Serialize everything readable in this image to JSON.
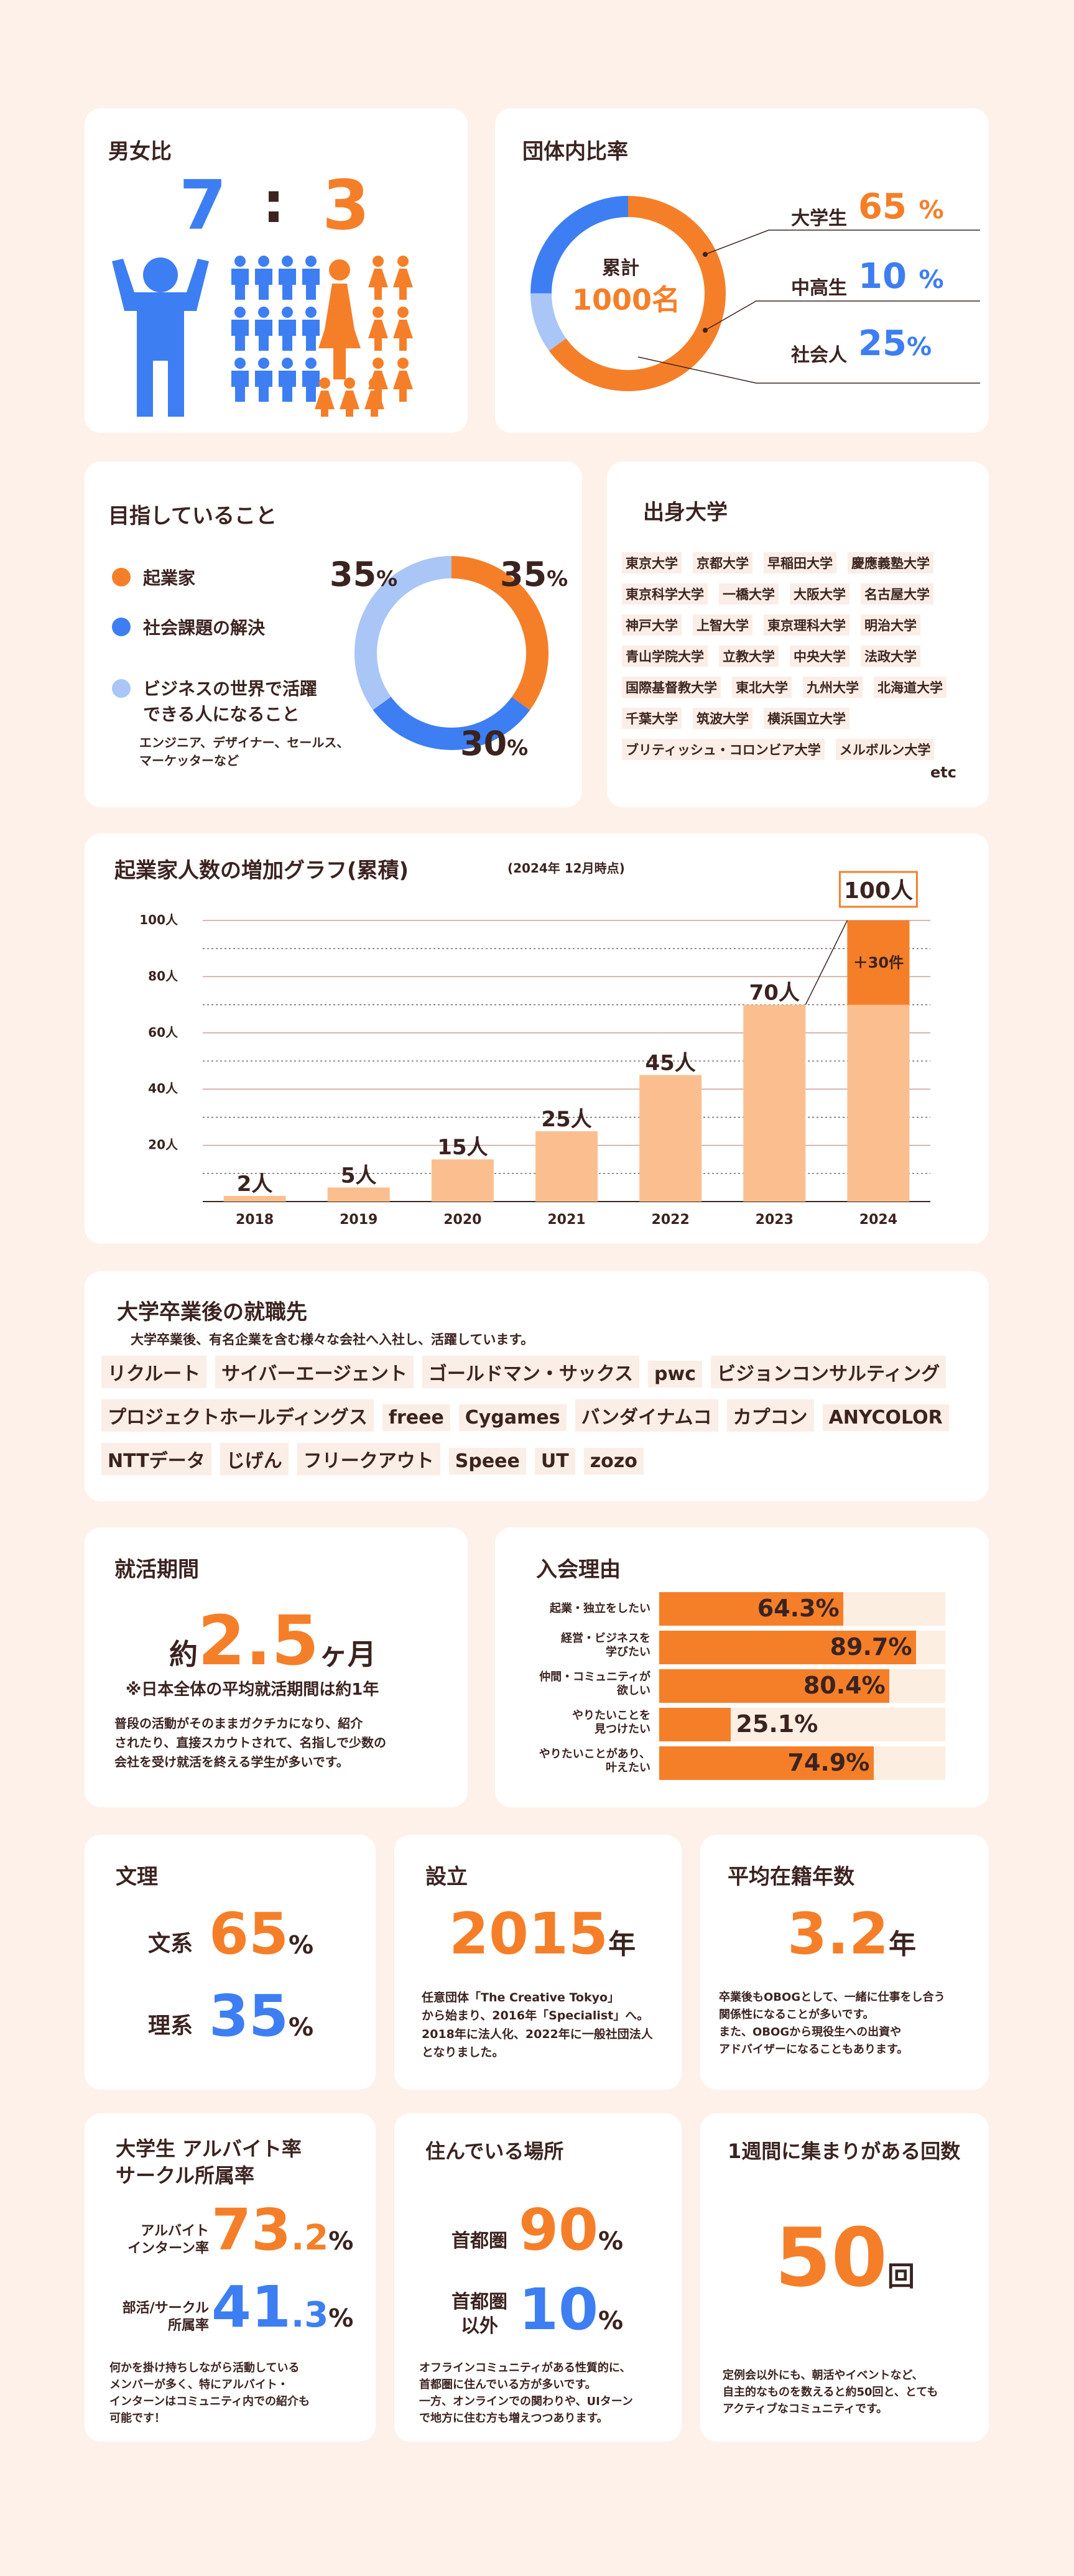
{
  "gender": {
    "title": "男女比",
    "male_ratio": "7",
    "colon": ":",
    "female_ratio": "3",
    "colors": {
      "male": "#3d7ef2",
      "female": "#f57f29"
    }
  },
  "composition": {
    "title": "団体内比率",
    "center_label": "累計",
    "center_value": "1000名",
    "items": [
      {
        "label": "大学生",
        "value": "65",
        "unit": "%",
        "color": "#f57f29"
      },
      {
        "label": "中高生",
        "value": "10",
        "unit": "%",
        "color": "#3d7ef2"
      },
      {
        "label": "社会人",
        "value": "25",
        "unit": "%",
        "color": "#3d7ef2"
      }
    ]
  },
  "goals": {
    "title": "目指していること",
    "items": [
      {
        "label": "起業家",
        "color": "#f57f29",
        "value": "35",
        "unit": "%"
      },
      {
        "label": "社会課題の解決",
        "color": "#3d7ef2",
        "value": "30",
        "unit": "%"
      },
      {
        "label": "ビジネスの世界で活躍",
        "label2": "できる人になること",
        "color": "#a9c6f7",
        "value": "35",
        "unit": "%"
      }
    ],
    "note_line1": "エンジニア、デザイナー、セールス、",
    "note_line2": "マーケッターなど"
  },
  "universities": {
    "title": "出身大学",
    "list": [
      "東京大学",
      "京都大学",
      "早稲田大学",
      "慶應義塾大学",
      "東京科学大学",
      "一橋大学",
      "大阪大学",
      "名古屋大学",
      "神戸大学",
      "上智大学",
      "東京理科大学",
      "明治大学",
      "青山学院大学",
      "立教大学",
      "中央大学",
      "法政大学",
      "国際基督教大学",
      "東北大学",
      "九州大学",
      "北海道大学",
      "千葉大学",
      "筑波大学",
      "横浜国立大学",
      "ブリティッシュ・コロンビア大学",
      "メルボルン大学"
    ],
    "etc": "etc"
  },
  "chart": {
    "title": "起業家人数の増加グラフ(累積)",
    "subtitle": "(2024年 12月時点)",
    "callout": "100人",
    "increment_label": "＋30件"
  },
  "chart_data": {
    "type": "bar",
    "categories": [
      "2018",
      "2019",
      "2020",
      "2021",
      "2022",
      "2023",
      "2024"
    ],
    "values": [
      2,
      5,
      15,
      25,
      45,
      70,
      100
    ],
    "data_labels": [
      "2人",
      "5人",
      "15人",
      "25人",
      "45人",
      "70人",
      "100人"
    ],
    "y_ticks": [
      20,
      40,
      60,
      80,
      100
    ],
    "y_tick_labels": [
      "20人",
      "40人",
      "60人",
      "80人",
      "100人"
    ],
    "ylim": [
      0,
      100
    ],
    "grid": true,
    "colors": {
      "bar": "#fbbf8f",
      "highlight": "#f57f29"
    }
  },
  "career": {
    "title": "大学卒業後の就職先",
    "description": "大学卒業後、有名企業を含む様々な会社へ入社し、活躍しています。",
    "companies": [
      "リクルート",
      "サイバーエージェント",
      "ゴールドマン・サックス",
      "pwc",
      "ビジョンコンサルティング",
      "プロジェクトホールディングス",
      "freee",
      "Cygames",
      "バンダイナムコ",
      "カプコン",
      "ANYCOLOR",
      "NTTデータ",
      "じげん",
      "フリークアウト",
      "Speee",
      "UT",
      "zozo"
    ]
  },
  "job_hunting": {
    "title": "就活期間",
    "prefix": "約",
    "value": "2.5",
    "unit": "ヶ月",
    "note": "※日本全体の平均就活期間は約1年",
    "desc_line1": "普段の活動がそのままガクチカになり、紹介",
    "desc_line2": "されたり、直接スカウトされて、名指しで少数の",
    "desc_line3": "会社を受け就活を終える学生が多いです。"
  },
  "reasons": {
    "title": "入会理由",
    "items": [
      {
        "label1": "起業・独立をしたい",
        "label2": "",
        "value": 64.3,
        "text": "64.3%"
      },
      {
        "label1": "経営・ビジネスを",
        "label2": "学びたい",
        "value": 89.7,
        "text": "89.7%"
      },
      {
        "label1": "仲間・コミュニティが",
        "label2": "欲しい",
        "value": 80.4,
        "text": "80.4%"
      },
      {
        "label1": "やりたいことを",
        "label2": "見つけたい",
        "value": 25.1,
        "text": "25.1%"
      },
      {
        "label1": "やりたいことがあり、",
        "label2": "叶えたい",
        "value": 74.9,
        "text": "74.9%"
      }
    ]
  },
  "faculty": {
    "title": "文理",
    "items": [
      {
        "label": "文系",
        "value": "65",
        "unit": "%"
      },
      {
        "label": "理系",
        "value": "35",
        "unit": "%"
      }
    ]
  },
  "founded": {
    "title": "設立",
    "value": "2015",
    "unit": "年",
    "desc_line1": "任意団体「The Creative Tokyo」",
    "desc_line2": "から始まり、2016年「Specialist」へ。",
    "desc_line3": "2018年に法人化、2022年に一般社団法人",
    "desc_line4": "となりました。"
  },
  "tenure": {
    "title": "平均在籍年数",
    "value": "3.2",
    "unit": "年",
    "desc_line1": "卒業後もOBOGとして、一緒に仕事をし合う",
    "desc_line2": "関係性になることが多いです。",
    "desc_line3": "また、OBOGから現役生への出資や",
    "desc_line4": "アドバイザーになることもあります。"
  },
  "parttime": {
    "title1": "大学生 アルバイト率",
    "title2": "サークル所属率",
    "items": [
      {
        "label1": "アルバイト",
        "label2": "インターン率",
        "int": "73",
        "dec": ".2",
        "unit": "%"
      },
      {
        "label1": "部活/サークル",
        "label2": "所属率",
        "int": "41",
        "dec": ".3",
        "unit": "%"
      }
    ],
    "desc_line1": "何かを掛け持ちしながら活動している",
    "desc_line2": "メンバーが多く、特にアルバイト・",
    "desc_line3": "インターンはコミュニティ内での紹介も",
    "desc_line4": "可能です！"
  },
  "residence": {
    "title": "住んでいる場所",
    "items": [
      {
        "label1": "首都圏",
        "label2": "",
        "value": "90",
        "unit": "%"
      },
      {
        "label1": "首都圏",
        "label2": "以外",
        "value": "10",
        "unit": "%"
      }
    ],
    "desc_line1": "オフラインコミュニティがある性質的に、",
    "desc_line2": "首都圏に住んでいる方が多いです。",
    "desc_line3": "一方、オンラインでの関わりや、UIターン",
    "desc_line4": "で地方に住む方も増えつつあります。"
  },
  "meetings": {
    "title": "1週間に集まりがある回数",
    "value": "50",
    "unit": "回",
    "desc_line1": "定例会以外にも、朝活やイベントなど、",
    "desc_line2": "自主的なものを数えると約50回と、とても",
    "desc_line3": "アクティブなコミュニティです。"
  }
}
